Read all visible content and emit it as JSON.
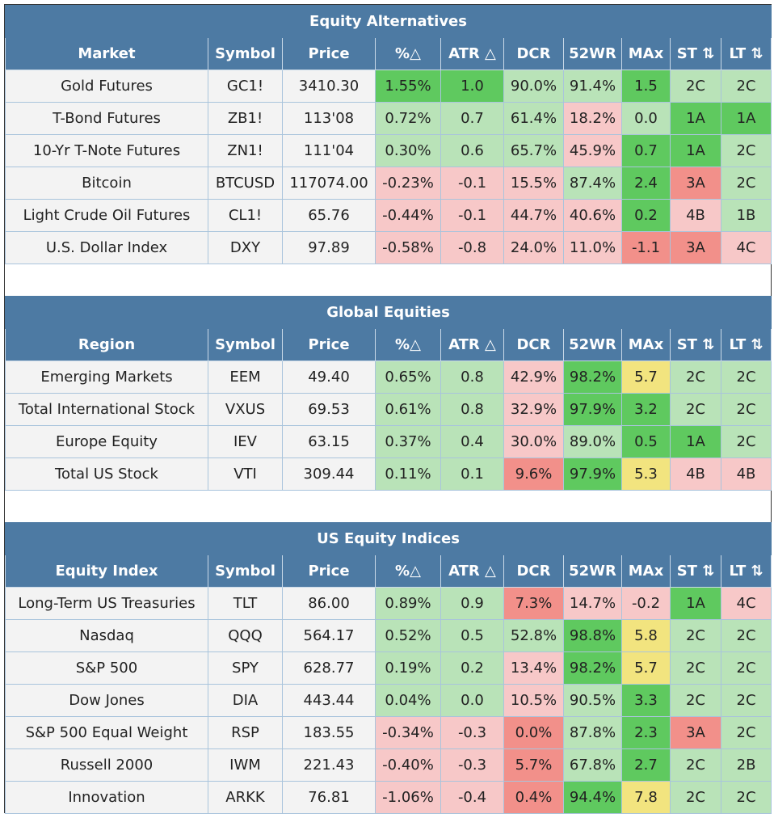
{
  "columns": [
    "Symbol",
    "Price",
    "%△",
    "ATR △",
    "DCR",
    "52WR",
    "MAx",
    "ST ⇅",
    "LT ⇅"
  ],
  "colors": {
    "header_blue": "#4d7aa3",
    "light_green": "#b9e3b8",
    "dark_green": "#5fc95f",
    "light_red": "#f7c8c8",
    "medium_red": "#f2908a",
    "yellow": "#f2e47f",
    "plain": "#f3f3f3"
  },
  "sections": [
    {
      "title": "Equity Alternatives",
      "first_col": "Market",
      "rows": [
        {
          "name": "Gold Futures",
          "symbol": "GC1!",
          "price": "3410.30",
          "pct": "1.55%",
          "atr": "1.0",
          "dcr": "90.0%",
          "wr52": "91.4%",
          "max": "1.5",
          "st": "2C",
          "lt": "2C",
          "selected": true,
          "colors": [
            "plain",
            "plain",
            "plain",
            "dg",
            "dg",
            "lg",
            "lg",
            "dg",
            "lg",
            "lg"
          ]
        },
        {
          "name": "T-Bond Futures",
          "symbol": "ZB1!",
          "price": "113'08",
          "pct": "0.72%",
          "atr": "0.7",
          "dcr": "61.4%",
          "wr52": "18.2%",
          "max": "0.0",
          "st": "1A",
          "lt": "1A",
          "colors": [
            "plain",
            "plain",
            "plain",
            "lg",
            "lg",
            "lg",
            "lr",
            "lg",
            "dg",
            "dg"
          ]
        },
        {
          "name": "10-Yr T-Note Futures",
          "symbol": "ZN1!",
          "price": "111'04",
          "pct": "0.30%",
          "atr": "0.6",
          "dcr": "65.7%",
          "wr52": "45.9%",
          "max": "0.7",
          "st": "1A",
          "lt": "2C",
          "colors": [
            "plain",
            "plain",
            "plain",
            "lg",
            "lg",
            "lg",
            "lr",
            "dg",
            "dg",
            "lg"
          ]
        },
        {
          "name": "Bitcoin",
          "symbol": "BTCUSD",
          "price": "117074.00",
          "pct": "-0.23%",
          "atr": "-0.1",
          "dcr": "15.5%",
          "wr52": "87.4%",
          "max": "2.4",
          "st": "3A",
          "lt": "2C",
          "colors": [
            "plain",
            "plain",
            "plain",
            "lr",
            "lr",
            "lr",
            "lg",
            "dg",
            "mr",
            "lg"
          ]
        },
        {
          "name": "Light Crude Oil Futures",
          "symbol": "CL1!",
          "price": "65.76",
          "pct": "-0.44%",
          "atr": "-0.1",
          "dcr": "44.7%",
          "wr52": "40.6%",
          "max": "0.2",
          "st": "4B",
          "lt": "1B",
          "colors": [
            "plain",
            "plain",
            "plain",
            "lr",
            "lr",
            "lr",
            "lr",
            "dg",
            "lr",
            "lg"
          ]
        },
        {
          "name": "U.S. Dollar Index",
          "symbol": "DXY",
          "price": "97.89",
          "pct": "-0.58%",
          "atr": "-0.8",
          "dcr": "24.0%",
          "wr52": "11.0%",
          "max": "-1.1",
          "st": "3A",
          "lt": "4C",
          "colors": [
            "plain",
            "plain",
            "plain",
            "lr",
            "lr",
            "lr",
            "lr",
            "mr",
            "mr",
            "lr"
          ]
        }
      ]
    },
    {
      "title": "Global Equities",
      "first_col": "Region",
      "rows": [
        {
          "name": "Emerging Markets",
          "symbol": "EEM",
          "price": "49.40",
          "pct": "0.65%",
          "atr": "0.8",
          "dcr": "42.9%",
          "wr52": "98.2%",
          "max": "5.7",
          "st": "2C",
          "lt": "2C",
          "colors": [
            "plain",
            "plain",
            "plain",
            "lg",
            "lg",
            "lr",
            "dg",
            "yl",
            "lg",
            "lg"
          ]
        },
        {
          "name": "Total International Stock",
          "symbol": "VXUS",
          "price": "69.53",
          "pct": "0.61%",
          "atr": "0.8",
          "dcr": "32.9%",
          "wr52": "97.9%",
          "max": "3.2",
          "st": "2C",
          "lt": "2C",
          "colors": [
            "plain",
            "plain",
            "plain",
            "lg",
            "lg",
            "lr",
            "dg",
            "dg",
            "lg",
            "lg"
          ]
        },
        {
          "name": "Europe Equity",
          "symbol": "IEV",
          "price": "63.15",
          "pct": "0.37%",
          "atr": "0.4",
          "dcr": "30.0%",
          "wr52": "89.0%",
          "max": "0.5",
          "st": "1A",
          "lt": "2C",
          "colors": [
            "plain",
            "plain",
            "plain",
            "lg",
            "lg",
            "lr",
            "lg",
            "dg",
            "dg",
            "lg"
          ]
        },
        {
          "name": "Total US Stock",
          "symbol": "VTI",
          "price": "309.44",
          "pct": "0.11%",
          "atr": "0.1",
          "dcr": "9.6%",
          "wr52": "97.9%",
          "max": "5.3",
          "st": "4B",
          "lt": "4B",
          "colors": [
            "plain",
            "plain",
            "plain",
            "lg",
            "lg",
            "mr",
            "dg",
            "yl",
            "lr",
            "lr"
          ]
        }
      ]
    },
    {
      "title": "US Equity Indices",
      "first_col": "Equity Index",
      "rows": [
        {
          "name": "Long-Term US Treasuries",
          "symbol": "TLT",
          "price": "86.00",
          "pct": "0.89%",
          "atr": "0.9",
          "dcr": "7.3%",
          "wr52": "14.7%",
          "max": "-0.2",
          "st": "1A",
          "lt": "4C",
          "colors": [
            "plain",
            "plain",
            "plain",
            "lg",
            "lg",
            "mr",
            "lr",
            "lr",
            "dg",
            "lr"
          ]
        },
        {
          "name": "Nasdaq",
          "symbol": "QQQ",
          "price": "564.17",
          "pct": "0.52%",
          "atr": "0.5",
          "dcr": "52.8%",
          "wr52": "98.8%",
          "max": "5.8",
          "st": "2C",
          "lt": "2C",
          "colors": [
            "plain",
            "plain",
            "plain",
            "lg",
            "lg",
            "lg",
            "dg",
            "yl",
            "lg",
            "lg"
          ]
        },
        {
          "name": "S&P 500",
          "symbol": "SPY",
          "price": "628.77",
          "pct": "0.19%",
          "atr": "0.2",
          "dcr": "13.4%",
          "wr52": "98.2%",
          "max": "5.7",
          "st": "2C",
          "lt": "2C",
          "colors": [
            "plain",
            "plain",
            "plain",
            "lg",
            "lg",
            "lr",
            "dg",
            "yl",
            "lg",
            "lg"
          ]
        },
        {
          "name": "Dow Jones",
          "symbol": "DIA",
          "price": "443.44",
          "pct": "0.04%",
          "atr": "0.0",
          "dcr": "10.5%",
          "wr52": "90.5%",
          "max": "3.3",
          "st": "2C",
          "lt": "2C",
          "colors": [
            "plain",
            "plain",
            "plain",
            "lg",
            "lg",
            "lr",
            "lg",
            "dg",
            "lg",
            "lg"
          ]
        },
        {
          "name": "S&P 500 Equal Weight",
          "symbol": "RSP",
          "price": "183.55",
          "pct": "-0.34%",
          "atr": "-0.3",
          "dcr": "0.0%",
          "wr52": "87.8%",
          "max": "2.3",
          "st": "3A",
          "lt": "2C",
          "colors": [
            "plain",
            "plain",
            "plain",
            "lr",
            "lr",
            "mr",
            "lg",
            "dg",
            "mr",
            "lg"
          ]
        },
        {
          "name": "Russell 2000",
          "symbol": "IWM",
          "price": "221.43",
          "pct": "-0.40%",
          "atr": "-0.3",
          "dcr": "5.7%",
          "wr52": "67.8%",
          "max": "2.7",
          "st": "2C",
          "lt": "2B",
          "colors": [
            "plain",
            "plain",
            "plain",
            "lr",
            "lr",
            "mr",
            "lg",
            "dg",
            "lg",
            "lg"
          ]
        },
        {
          "name": "Innovation",
          "symbol": "ARKK",
          "price": "76.81",
          "pct": "-1.06%",
          "atr": "-0.4",
          "dcr": "0.4%",
          "wr52": "94.4%",
          "max": "7.8",
          "st": "2C",
          "lt": "2C",
          "colors": [
            "plain",
            "plain",
            "plain",
            "lr",
            "lr",
            "mr",
            "dg",
            "yl",
            "lg",
            "lg"
          ]
        }
      ]
    }
  ]
}
